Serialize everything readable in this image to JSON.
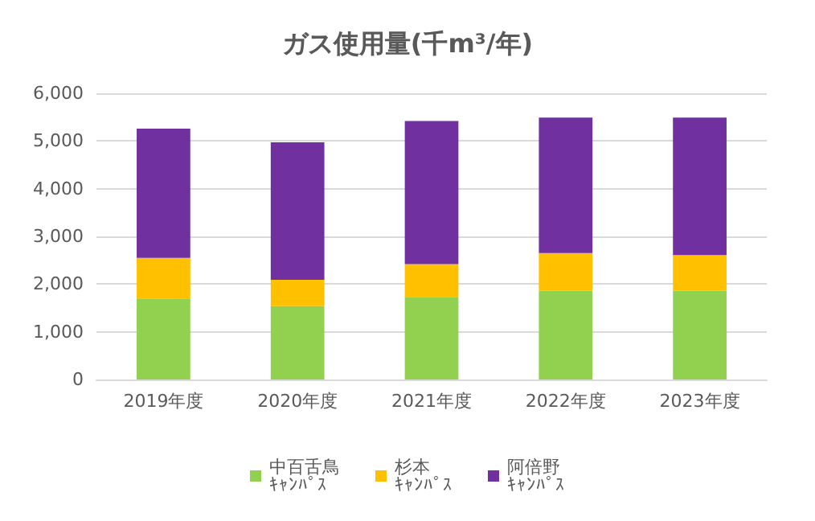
{
  "chart_data": {
    "type": "bar",
    "title": "ガス使用量(千m³/年)",
    "categories": [
      "2019年度",
      "2020年度",
      "2021年度",
      "2022年度",
      "2023年度"
    ],
    "stacked": true,
    "series": [
      {
        "name": "中百舌鳥ｷｬﾝﾊﾟｽ",
        "color": "#92d050",
        "values": [
          1700,
          1540,
          1730,
          1860,
          1860
        ]
      },
      {
        "name": "杉本ｷｬﾝﾊﾟｽ",
        "color": "#ffc000",
        "values": [
          850,
          550,
          690,
          790,
          750
        ]
      },
      {
        "name": "阿倍野ｷｬﾝﾊﾟｽ",
        "color": "#7030a0",
        "values": [
          2710,
          2880,
          3000,
          2840,
          2880
        ]
      }
    ],
    "ylim": [
      0,
      6000
    ],
    "yticks": [
      0,
      {
        "value": 1000,
        "label": "1,000"
      },
      {
        "value": 2000,
        "label": "2,000"
      },
      {
        "value": 3000,
        "label": "3,000"
      },
      {
        "value": 4000,
        "label": "4,000"
      },
      {
        "value": 5000,
        "label": "5,000"
      },
      {
        "value": 6000,
        "label": "6,000"
      }
    ],
    "grid": "y",
    "legend": "bottom"
  }
}
